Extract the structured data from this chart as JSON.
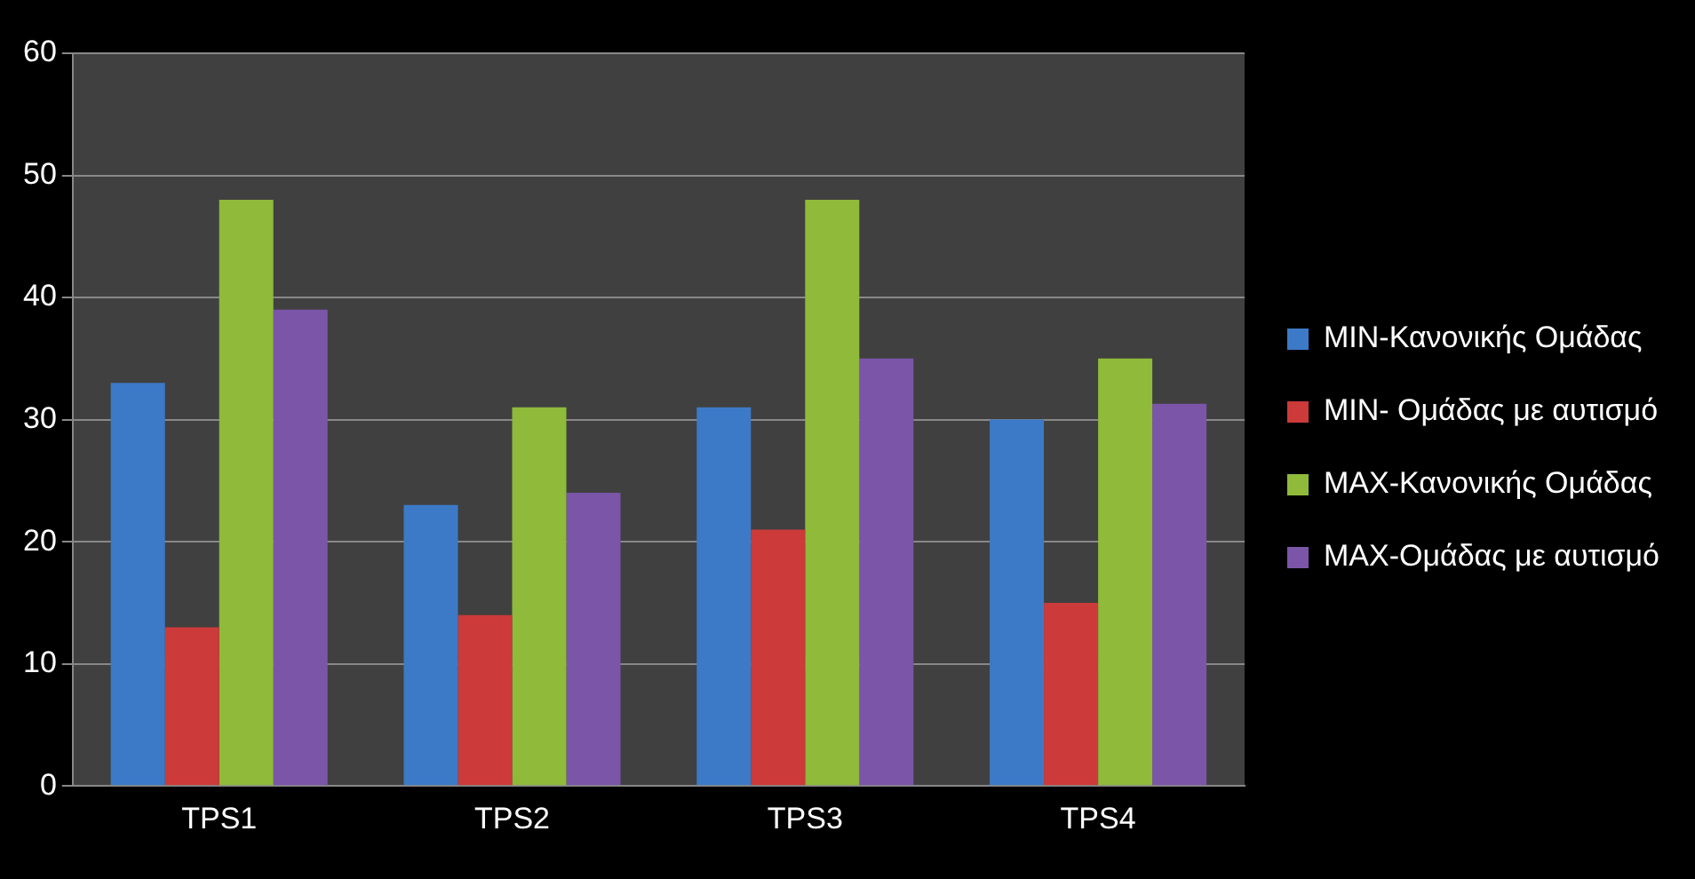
{
  "chart_data": {
    "type": "bar",
    "categories": [
      "TPS1",
      "TPS2",
      "TPS3",
      "TPS4"
    ],
    "series": [
      {
        "name": "MIN-Κανονικής Ομάδας",
        "color": "#3c7ac8",
        "values": [
          33,
          23,
          31,
          30
        ]
      },
      {
        "name": "MIN- Ομάδας με αυτισμό",
        "color": "#cc3a3a",
        "values": [
          13,
          14,
          21,
          15
        ]
      },
      {
        "name": "MAX-Κανονικής Ομάδας",
        "color": "#8fba3a",
        "values": [
          48,
          31,
          48,
          35
        ]
      },
      {
        "name": "MAX-Ομάδας με αυτισμό",
        "color": "#7a55a8",
        "values": [
          39,
          24,
          35,
          31.3
        ]
      }
    ],
    "ylim": [
      0,
      60
    ],
    "yticks": [
      0,
      10,
      20,
      30,
      40,
      50,
      60
    ],
    "grid": "y",
    "legend": "right"
  }
}
